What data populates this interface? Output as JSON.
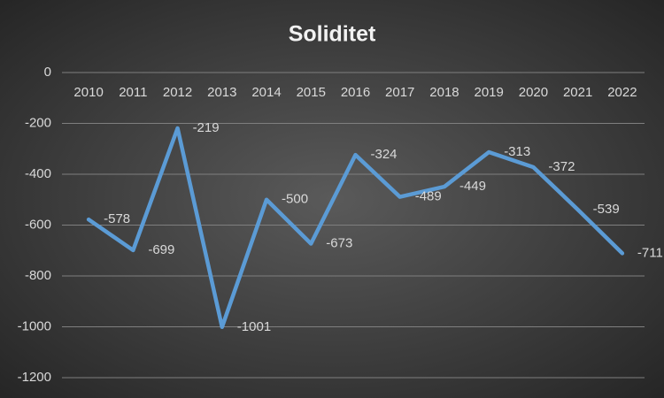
{
  "chart_data": {
    "type": "line",
    "title": "Soliditet",
    "categories": [
      "2010",
      "2011",
      "2012",
      "2013",
      "2014",
      "2015",
      "2016",
      "2017",
      "2018",
      "2019",
      "2020",
      "2021",
      "2022"
    ],
    "values": [
      -578,
      -699,
      -219,
      -1001,
      -500,
      -673,
      -324,
      -489,
      -449,
      -313,
      -372,
      -539,
      -711
    ],
    "color": "#5b9bd5",
    "ylim": [
      -1200,
      0
    ],
    "yticks": [
      0,
      -200,
      -400,
      -600,
      -800,
      -1000,
      -1200
    ],
    "grid": true
  }
}
